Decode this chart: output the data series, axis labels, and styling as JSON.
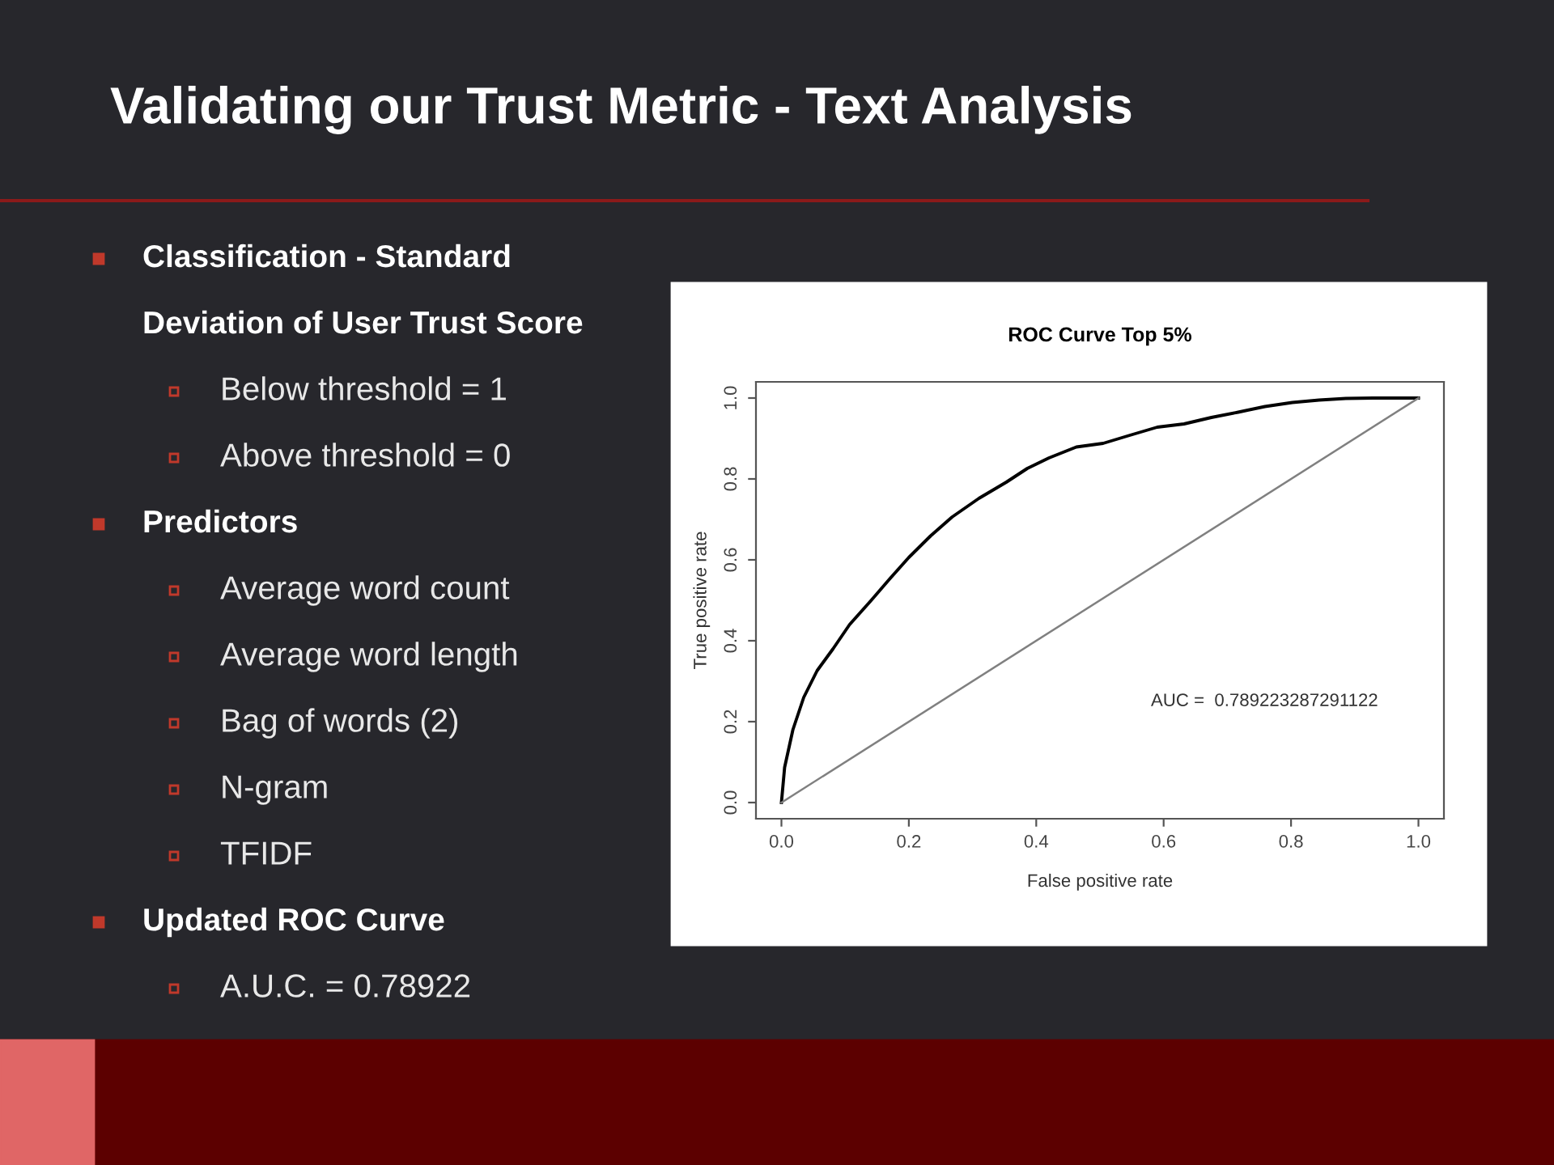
{
  "chart_data": {
    "type": "line",
    "title": "ROC Curve Top 5%",
    "subtitle": "Validating our Trust Metric - Text Analysis",
    "xlabel": "False positive rate",
    "ylabel": "True positive rate",
    "series": [
      {
        "color": "#000000",
        "x": [
          0,
          0.005,
          0.018,
          0.035,
          0.056,
          0.081,
          0.107,
          0.141,
          0.17,
          0.2,
          0.234,
          0.268,
          0.31,
          0.353,
          0.386,
          0.42,
          0.463,
          0.505,
          0.547,
          0.59,
          0.632,
          0.675,
          0.717,
          0.759,
          0.802,
          0.844,
          0.886,
          0.929,
          1
        ],
        "values": [
          0,
          0.087,
          0.18,
          0.26,
          0.326,
          0.38,
          0.44,
          0.5,
          0.553,
          0.606,
          0.659,
          0.706,
          0.752,
          0.792,
          0.826,
          0.852,
          0.879,
          0.888,
          0.908,
          0.928,
          0.936,
          0.952,
          0.965,
          0.979,
          0.989,
          0.995,
          0.999,
          1.0,
          1.0
        ]
      },
      {
        "color": "#808080",
        "x": [
          0,
          1
        ],
        "values": [
          0,
          1
        ]
      }
    ],
    "xlim": [
      -0.04,
      1.04
    ],
    "ylim": [
      -0.04,
      1.04
    ],
    "xticks": [
      {
        "value": 0,
        "label": "0.0"
      },
      0.2,
      0.4,
      0.6,
      0.8,
      {
        "value": 1,
        "label": "1.0"
      }
    ],
    "yticks": [
      {
        "value": 0,
        "label": "0.0"
      },
      0.2,
      0.4,
      0.6,
      0.8,
      {
        "value": 1,
        "label": "1.0"
      }
    ],
    "grid": false,
    "legend": false,
    "annotations": [
      "AUC =  0.789223287291122",
      "Classification - Standard",
      "Deviation of User Trust Score",
      "Below threshold = 1",
      "Above threshold = 0",
      "Predictors",
      "Average word count",
      "Average word length",
      "Bag of words (2)",
      "N-gram",
      "TFIDF",
      "Updated ROC Curve",
      "A.U.C. = 0.78922"
    ]
  }
}
